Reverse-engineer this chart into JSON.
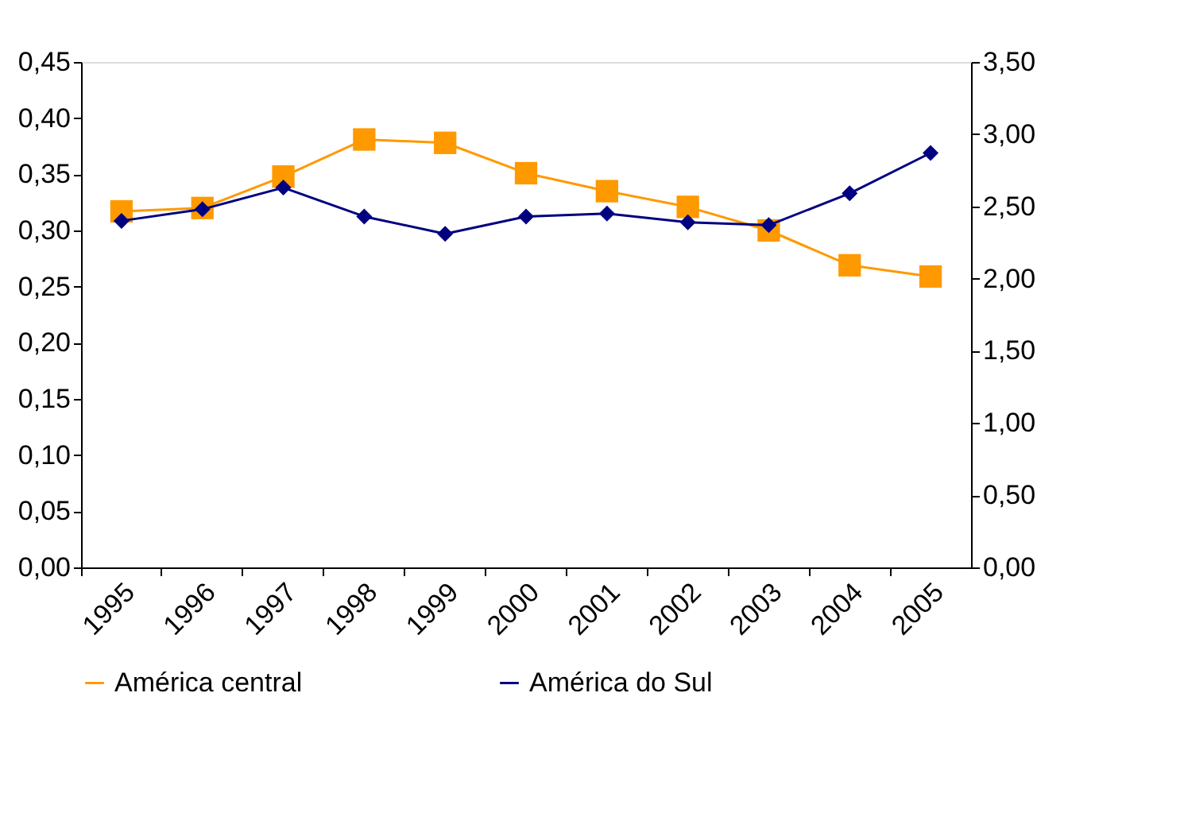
{
  "chart_data": {
    "type": "line",
    "categories": [
      "1995",
      "1996",
      "1997",
      "1998",
      "1999",
      "2000",
      "2001",
      "2002",
      "2003",
      "2004",
      "2005"
    ],
    "series": [
      {
        "name": "América central",
        "color": "#ff9900",
        "marker": "square",
        "values": [
          0.317,
          0.32,
          0.348,
          0.381,
          0.378,
          0.351,
          0.335,
          0.321,
          0.3,
          0.269,
          0.259
        ]
      },
      {
        "name": "América do Sul",
        "color": "#000080",
        "marker": "diamond",
        "axis": "y2",
        "values": [
          2.4,
          2.48,
          2.63,
          2.43,
          2.31,
          2.43,
          2.45,
          2.39,
          2.37,
          2.59,
          2.87
        ]
      }
    ],
    "ylim": [
      0,
      0.45
    ],
    "yticks": [
      {
        "value": 0,
        "label": "0,00"
      },
      {
        "value": 0.05,
        "label": "0,05"
      },
      {
        "value": 0.1,
        "label": "0,10"
      },
      {
        "value": 0.15,
        "label": "0,15"
      },
      {
        "value": 0.2,
        "label": "0,20"
      },
      {
        "value": 0.25,
        "label": "0,25"
      },
      {
        "value": 0.3,
        "label": "0,30"
      },
      {
        "value": 0.35,
        "label": "0,35"
      },
      {
        "value": 0.4,
        "label": "0,40"
      },
      {
        "value": 0.45,
        "label": "0,45"
      }
    ],
    "y2lim": [
      0,
      3.5
    ],
    "y2ticks": [
      {
        "value": 0,
        "label": "0,00"
      },
      {
        "value": 0.5,
        "label": "0,50"
      },
      {
        "value": 1,
        "label": "1,00"
      },
      {
        "value": 1.5,
        "label": "1,50"
      },
      {
        "value": 2,
        "label": "2,00"
      },
      {
        "value": 2.5,
        "label": "2,50"
      },
      {
        "value": 3,
        "label": "3,00"
      },
      {
        "value": 3.5,
        "label": "3,50"
      }
    ],
    "line_style": "solid",
    "grid": false,
    "legend": "bottom"
  }
}
